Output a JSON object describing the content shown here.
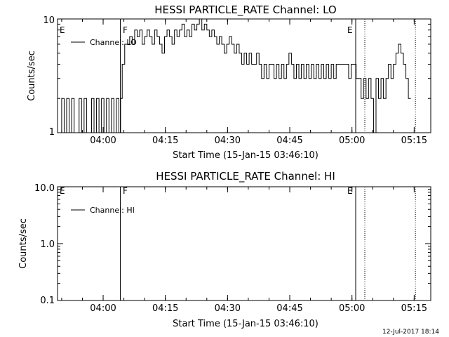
{
  "footer": {
    "date": "12-Jul-2017 18:14"
  },
  "chart_data": [
    {
      "type": "line",
      "title": "HESSI PARTICLE_RATE Channel: LO",
      "xlabel": "Start Time (15-Jan-15 03:46:10)",
      "ylabel": "Counts/sec",
      "y_scale": "log",
      "ylim": [
        1,
        10
      ],
      "ytick_labels": [
        "1",
        "10"
      ],
      "xlim_minutes": [
        3.0,
        39.0
      ],
      "xticks": [
        "04:00",
        "04:15",
        "04:30",
        "04:45",
        "05:00",
        "05:15"
      ],
      "legend": "Channel: LO",
      "markers": [
        {
          "label": "E",
          "minutes": 3.17,
          "style": "none"
        },
        {
          "label": "F",
          "minutes": 18.15,
          "style": "solid"
        },
        {
          "label": "E",
          "minutes": 75.8,
          "style": "dotted"
        }
      ],
      "vlines": [
        {
          "minutes": 18.15,
          "style": "solid"
        },
        {
          "minutes": 74.9,
          "style": "solid"
        },
        {
          "minutes": 77.1,
          "style": "dotted"
        },
        {
          "minutes": 89.3,
          "style": "dotted"
        }
      ],
      "series": [
        {
          "name": "Channel: LO",
          "t_minutes": [
            3.2,
            4.0,
            4.6,
            5.2,
            5.8,
            6.4,
            7.0,
            7.6,
            8.2,
            8.8,
            9.4,
            10.0,
            10.6,
            11.2,
            11.8,
            12.4,
            13.0,
            13.6,
            14.2,
            14.8,
            15.4,
            16.0,
            16.6,
            17.2,
            17.8,
            18.2,
            18.6,
            19.2,
            19.8,
            20.4,
            21.0,
            21.6,
            22.2,
            22.8,
            23.4,
            24.0,
            24.6,
            25.2,
            25.8,
            26.4,
            27.0,
            27.6,
            28.2,
            28.8,
            29.4,
            30.0,
            30.6,
            31.2,
            31.8,
            32.4,
            33.0,
            33.6,
            34.2,
            34.8,
            35.4,
            36.0,
            36.6,
            37.2,
            37.8,
            38.4,
            39.0,
            39.6,
            40.2,
            40.8,
            41.4,
            42.0,
            42.6,
            43.2,
            43.8,
            44.4,
            45.0,
            45.6,
            46.2,
            46.8,
            47.4,
            48.0,
            48.6,
            49.2,
            49.8,
            50.4,
            51.0,
            51.6,
            52.2,
            52.8,
            53.4,
            54.0,
            54.6,
            55.2,
            55.8,
            56.4,
            57.0,
            57.6,
            58.2,
            58.8,
            59.4,
            60.0,
            60.6,
            61.2,
            61.8,
            62.4,
            63.0,
            63.6,
            64.2,
            64.8,
            65.4,
            66.0,
            66.6,
            67.2,
            67.8,
            68.4,
            69.0,
            69.6,
            70.2,
            70.8,
            71.4,
            72.0,
            72.6,
            73.2,
            73.8,
            74.4,
            75.0,
            75.6,
            76.2,
            76.8,
            77.4,
            78.0,
            78.6,
            79.2,
            79.8,
            80.4,
            81.0,
            81.6,
            82.2,
            82.8,
            83.4,
            84.0,
            84.6,
            85.2,
            85.8,
            86.4,
            87.0,
            87.6,
            88.2,
            88.8
          ],
          "values": [
            1,
            2,
            1,
            2,
            1,
            2,
            1,
            1,
            2,
            1,
            2,
            1,
            1,
            2,
            1,
            2,
            1,
            2,
            1,
            2,
            1,
            2,
            1,
            2,
            1,
            2,
            4,
            6,
            6,
            7,
            6,
            8,
            7,
            8,
            6,
            7,
            8,
            7,
            6,
            8,
            7,
            6,
            5,
            7,
            8,
            7,
            6,
            8,
            7,
            8,
            9,
            7,
            8,
            7,
            9,
            8,
            9,
            10,
            8,
            9,
            8,
            7,
            8,
            7,
            6,
            7,
            6,
            5,
            6,
            7,
            6,
            5,
            6,
            5,
            4,
            5,
            4,
            5,
            4,
            4,
            5,
            4,
            3,
            4,
            3,
            4,
            4,
            3,
            4,
            3,
            4,
            3,
            4,
            5,
            4,
            3,
            4,
            3,
            4,
            3,
            4,
            3,
            4,
            3,
            4,
            3,
            4,
            3,
            4,
            3,
            4,
            3,
            4,
            4,
            4,
            4,
            4,
            3,
            4,
            4,
            3,
            3,
            2,
            3,
            2,
            3,
            2,
            1,
            3,
            2,
            3,
            2,
            3,
            4,
            3,
            4,
            5,
            6,
            5,
            4,
            3,
            2
          ]
        }
      ]
    },
    {
      "type": "line",
      "title": "HESSI PARTICLE_RATE Channel: HI",
      "xlabel": "Start Time (15-Jan-15 03:46:10)",
      "ylabel": "Counts/sec",
      "y_scale": "log",
      "ylim": [
        0.1,
        10
      ],
      "ytick_labels": [
        "0.1",
        "1.0",
        "10.0"
      ],
      "xlim_minutes": [
        3.0,
        93.0
      ],
      "xticks": [
        "04:00",
        "04:15",
        "04:30",
        "04:45",
        "05:00",
        "05:15"
      ],
      "legend": "Channel: HI",
      "markers": [
        {
          "label": "E",
          "minutes": 3.17,
          "style": "none"
        },
        {
          "label": "F",
          "minutes": 18.15,
          "style": "solid"
        },
        {
          "label": "E",
          "minutes": 75.8,
          "style": "dotted"
        }
      ],
      "vlines": [
        {
          "minutes": 18.15,
          "style": "solid"
        },
        {
          "minutes": 74.9,
          "style": "solid"
        },
        {
          "minutes": 77.1,
          "style": "dotted"
        },
        {
          "minutes": 89.3,
          "style": "dotted"
        }
      ],
      "series": []
    }
  ]
}
